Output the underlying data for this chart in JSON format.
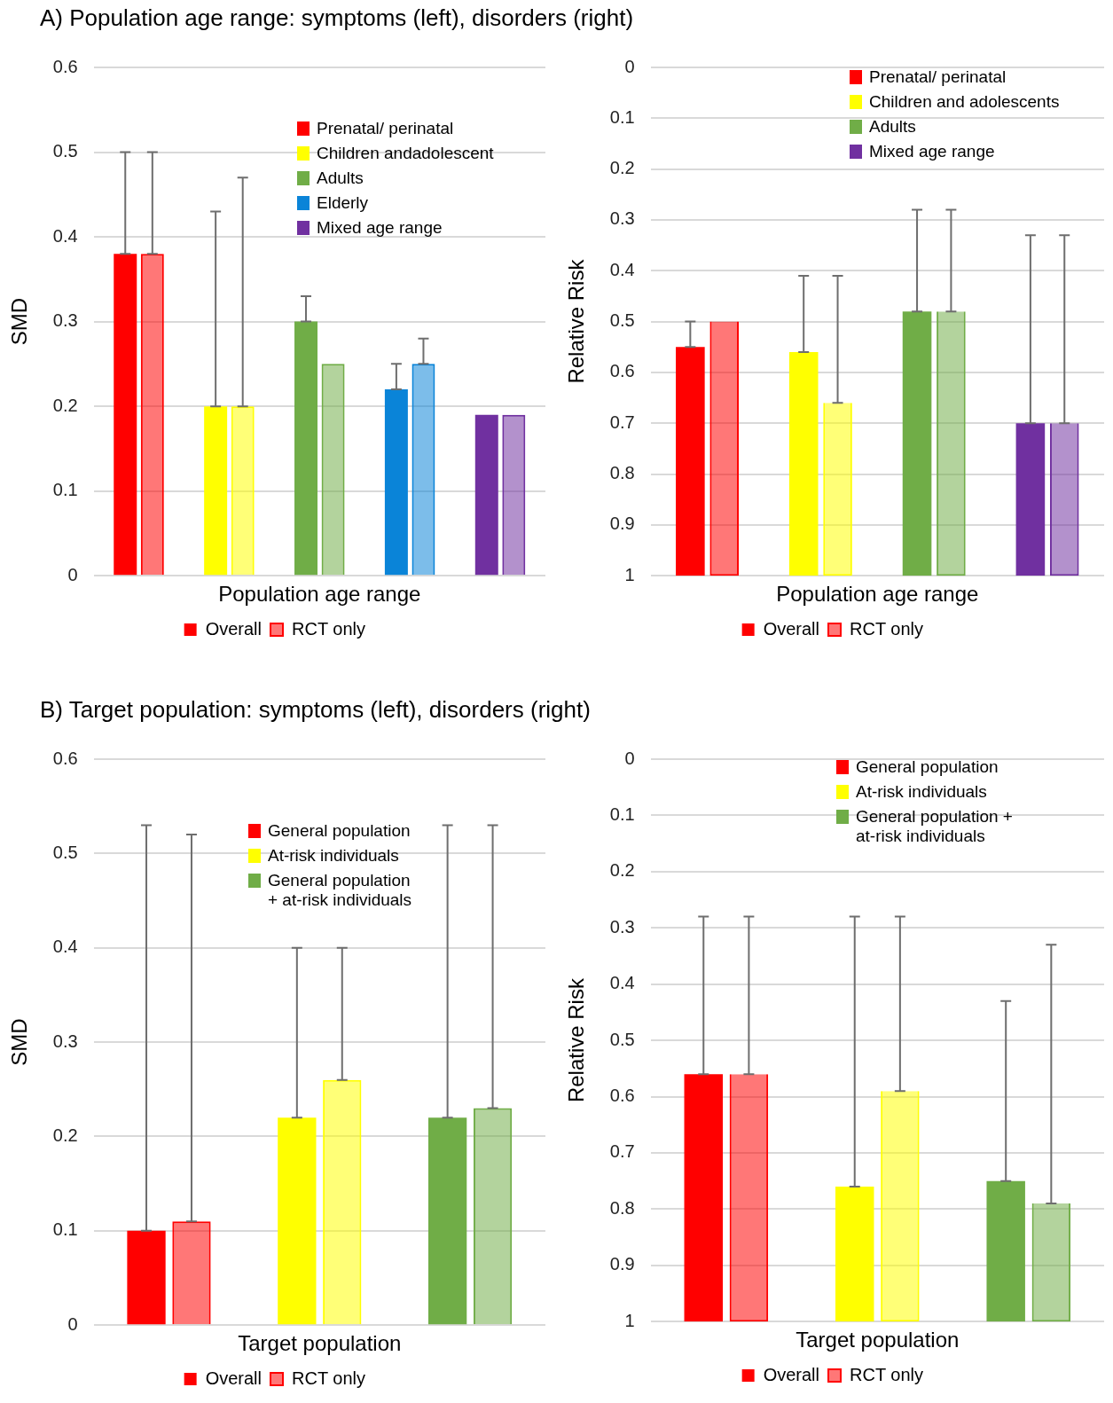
{
  "chart_data": [
    {
      "type": "bar",
      "title": "A)  Population age range: symptoms (left), disorders (right)",
      "xlabel": "Population age range",
      "ylabel": "SMD",
      "categories": [
        null,
        null,
        null,
        null,
        null
      ],
      "annotations": [
        "Prenatal/ perinatal",
        "Children andadolescent",
        "Adults",
        "Elderly",
        "Mixed age range"
      ],
      "tick_labels": "y",
      "grid": "y",
      "legend": "bottom",
      "ylim": [
        0,
        0.6
      ],
      "yticks": [
        0,
        0.1,
        0.2,
        0.3,
        0.4,
        0.5,
        0.6
      ],
      "series": [
        {
          "name": "Overall",
          "colors": [
            "#ff0000",
            "#ffff00",
            "#70ad47",
            "#0a84d8",
            "#7030a0"
          ],
          "values": [
            0.38,
            0.2,
            0.3,
            0.22,
            0.19
          ],
          "errors": [
            [
              0.38,
              0.5
            ],
            [
              0.2,
              0.43
            ],
            [
              0.3,
              0.33
            ],
            [
              0.22,
              0.25
            ],
            null
          ]
        },
        {
          "name": "RCT only",
          "colors": [
            "#ff0000",
            "#ffff00",
            "#70ad47",
            "#0a84d8",
            "#7030a0"
          ],
          "values": [
            0.38,
            0.2,
            0.25,
            0.25,
            0.19
          ],
          "errors": [
            [
              0.38,
              0.5
            ],
            [
              0.2,
              0.47
            ],
            null,
            [
              0.25,
              0.28
            ],
            null
          ]
        }
      ]
    },
    {
      "type": "bar",
      "xlabel": "Population age range",
      "ylabel": "Relative Risk",
      "categories": [
        null,
        null,
        null,
        null
      ],
      "annotations": [
        "Prenatal/ perinatal",
        "Children and adolescents",
        "Adults",
        "Mixed age range"
      ],
      "tick_labels": "y",
      "grid": "y",
      "legend": "bottom",
      "ylim": [
        1,
        0
      ],
      "yticks": [
        0,
        0.1,
        0.2,
        0.3,
        0.4,
        0.5,
        0.6,
        0.7,
        0.8,
        0.9,
        1
      ],
      "series": [
        {
          "name": "Overall",
          "colors": [
            "#ff0000",
            "#ffff00",
            "#70ad47",
            "#7030a0"
          ],
          "base": [
            1,
            1,
            1,
            1
          ],
          "values": [
            -0.45,
            -0.44,
            -0.52,
            -0.3
          ],
          "errors": [
            [
              0.5,
              0.55
            ],
            [
              0.41,
              0.56
            ],
            [
              0.28,
              0.48
            ],
            [
              0.33,
              0.7
            ]
          ]
        },
        {
          "name": "RCT only",
          "colors": [
            "#ff0000",
            "#ffff00",
            "#70ad47",
            "#7030a0"
          ],
          "base": [
            1,
            1,
            1,
            1
          ],
          "values": [
            -0.5,
            -0.34,
            -0.52,
            -0.3
          ],
          "errors": [
            null,
            [
              0.41,
              0.66
            ],
            [
              0.28,
              0.48
            ],
            [
              0.33,
              0.7
            ]
          ]
        }
      ]
    },
    {
      "type": "bar",
      "title": "B)  Target population: symptoms (left), disorders (right)",
      "xlabel": "Target population",
      "ylabel": "SMD",
      "categories": [
        null,
        null,
        null
      ],
      "annotations": [
        "General population",
        "At-risk individuals",
        "General population\n+ at-risk individuals"
      ],
      "tick_labels": "y",
      "grid": "y",
      "legend": "bottom",
      "ylim": [
        0,
        0.6
      ],
      "yticks": [
        0,
        0.1,
        0.2,
        0.3,
        0.4,
        0.5,
        0.6
      ],
      "series": [
        {
          "name": "Overall",
          "colors": [
            "#ff0000",
            "#ffff00",
            "#70ad47"
          ],
          "values": [
            0.1,
            0.22,
            0.22
          ],
          "errors": [
            [
              0.1,
              0.53
            ],
            [
              0.22,
              0.4
            ],
            [
              0.22,
              0.53
            ]
          ]
        },
        {
          "name": "RCT only",
          "colors": [
            "#ff0000",
            "#ffff00",
            "#70ad47"
          ],
          "values": [
            0.11,
            0.26,
            0.23
          ],
          "errors": [
            [
              0.11,
              0.52
            ],
            [
              0.26,
              0.4
            ],
            [
              0.23,
              0.53
            ]
          ]
        }
      ]
    },
    {
      "type": "bar",
      "xlabel": "Target population",
      "ylabel": "Relative Risk",
      "categories": [
        null,
        null,
        null
      ],
      "annotations": [
        "General population",
        "At-risk individuals",
        "General population +\nat-risk individuals"
      ],
      "tick_labels": "y",
      "grid": "y",
      "legend": "bottom",
      "ylim": [
        1,
        0
      ],
      "yticks": [
        0,
        0.1,
        0.2,
        0.3,
        0.4,
        0.5,
        0.6,
        0.7,
        0.8,
        0.9,
        1
      ],
      "series": [
        {
          "name": "Overall",
          "colors": [
            "#ff0000",
            "#ffff00",
            "#70ad47"
          ],
          "base": [
            1,
            1,
            1
          ],
          "values": [
            -0.44,
            -0.24,
            -0.25
          ],
          "errors": [
            [
              0.28,
              0.56
            ],
            [
              0.28,
              0.76
            ],
            [
              0.43,
              0.75
            ]
          ]
        },
        {
          "name": "RCT only",
          "colors": [
            "#ff0000",
            "#ffff00",
            "#70ad47"
          ],
          "base": [
            1,
            1,
            1
          ],
          "values": [
            -0.44,
            -0.41,
            -0.21
          ],
          "errors": [
            [
              0.28,
              0.56
            ],
            [
              0.28,
              0.59
            ],
            [
              0.33,
              0.79
            ]
          ]
        }
      ]
    }
  ]
}
